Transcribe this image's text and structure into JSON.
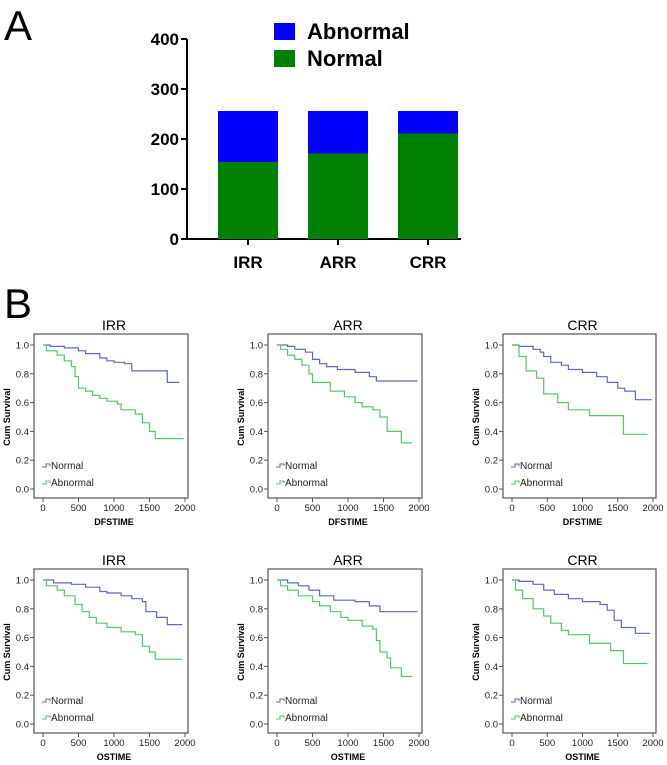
{
  "panel_labels": [
    "A",
    "B"
  ],
  "colors": {
    "bar_abnormal": "#0000ff",
    "bar_normal": "#008000",
    "km_normal": "#5b6cb3",
    "km_abnormal": "#5ac46a"
  },
  "chart_data": [
    {
      "type": "bar",
      "stacked": true,
      "categories": [
        "IRR",
        "ARR",
        "CRR"
      ],
      "series": [
        {
          "name": "Normal",
          "values": [
            154,
            171,
            211
          ]
        },
        {
          "name": "Abnormal",
          "values": [
            102,
            85,
            45
          ]
        }
      ],
      "ylim": [
        0,
        400
      ],
      "yticks": [
        "0",
        "100",
        "200",
        "300",
        "400"
      ],
      "legend_placement": "top"
    },
    {
      "type": "line",
      "step": true,
      "title": "IRR",
      "xlabel": "DFSTIME",
      "ylabel": "Cum Survival",
      "xlim": [
        0,
        2000
      ],
      "ylim": [
        0,
        1
      ],
      "xticks": [
        "0",
        "500",
        "1000",
        "1500",
        "2000"
      ],
      "yticks": [
        "0.0",
        "0.2",
        "0.4",
        "0.6",
        "0.8",
        "1.0"
      ],
      "legend_placement": "bottom-left",
      "series": [
        {
          "name": "Normal",
          "points": [
            [
              0,
              1
            ],
            [
              100,
              0.99
            ],
            [
              300,
              0.98
            ],
            [
              500,
              0.96
            ],
            [
              600,
              0.94
            ],
            [
              800,
              0.91
            ],
            [
              900,
              0.89
            ],
            [
              1000,
              0.88
            ],
            [
              1150,
              0.87
            ],
            [
              1250,
              0.82
            ],
            [
              1750,
              0.74
            ],
            [
              1920,
              0.74
            ]
          ]
        },
        {
          "name": "Abnormal",
          "points": [
            [
              0,
              1
            ],
            [
              50,
              0.96
            ],
            [
              200,
              0.93
            ],
            [
              300,
              0.89
            ],
            [
              400,
              0.85
            ],
            [
              450,
              0.78
            ],
            [
              500,
              0.7
            ],
            [
              600,
              0.68
            ],
            [
              700,
              0.65
            ],
            [
              800,
              0.63
            ],
            [
              900,
              0.61
            ],
            [
              1050,
              0.59
            ],
            [
              1100,
              0.55
            ],
            [
              1300,
              0.52
            ],
            [
              1400,
              0.46
            ],
            [
              1500,
              0.4
            ],
            [
              1580,
              0.35
            ],
            [
              1980,
              0.35
            ]
          ]
        }
      ]
    },
    {
      "type": "line",
      "step": true,
      "title": "ARR",
      "xlabel": "DFSTIME",
      "ylabel": "Cum Survival",
      "xlim": [
        0,
        2000
      ],
      "ylim": [
        0,
        1
      ],
      "xticks": [
        "0",
        "500",
        "1000",
        "1500",
        "2000"
      ],
      "yticks": [
        "0.0",
        "0.2",
        "0.4",
        "0.6",
        "0.8",
        "1.0"
      ],
      "legend_placement": "bottom-left",
      "series": [
        {
          "name": "Normal",
          "points": [
            [
              0,
              1
            ],
            [
              150,
              0.99
            ],
            [
              250,
              0.97
            ],
            [
              400,
              0.95
            ],
            [
              500,
              0.9
            ],
            [
              600,
              0.87
            ],
            [
              700,
              0.85
            ],
            [
              850,
              0.83
            ],
            [
              1100,
              0.81
            ],
            [
              1300,
              0.78
            ],
            [
              1400,
              0.75
            ],
            [
              1980,
              0.75
            ]
          ]
        },
        {
          "name": "Abnormal",
          "points": [
            [
              0,
              1
            ],
            [
              50,
              0.97
            ],
            [
              150,
              0.93
            ],
            [
              250,
              0.9
            ],
            [
              350,
              0.86
            ],
            [
              450,
              0.8
            ],
            [
              500,
              0.74
            ],
            [
              750,
              0.68
            ],
            [
              950,
              0.64
            ],
            [
              1100,
              0.6
            ],
            [
              1200,
              0.57
            ],
            [
              1350,
              0.55
            ],
            [
              1450,
              0.5
            ],
            [
              1550,
              0.4
            ],
            [
              1750,
              0.32
            ],
            [
              1900,
              0.32
            ]
          ]
        }
      ]
    },
    {
      "type": "line",
      "step": true,
      "title": "CRR",
      "xlabel": "DFSTIME",
      "ylabel": "Cum Survival",
      "xlim": [
        0,
        2000
      ],
      "ylim": [
        0,
        1
      ],
      "xticks": [
        "0",
        "500",
        "1000",
        "1500",
        "2000"
      ],
      "yticks": [
        "0.0",
        "0.2",
        "0.4",
        "0.6",
        "0.8",
        "1.0"
      ],
      "legend_placement": "bottom-left",
      "series": [
        {
          "name": "Normal",
          "points": [
            [
              0,
              1
            ],
            [
              100,
              0.99
            ],
            [
              300,
              0.97
            ],
            [
              400,
              0.95
            ],
            [
              450,
              0.92
            ],
            [
              550,
              0.88
            ],
            [
              700,
              0.86
            ],
            [
              800,
              0.83
            ],
            [
              1000,
              0.81
            ],
            [
              1200,
              0.78
            ],
            [
              1350,
              0.74
            ],
            [
              1500,
              0.7
            ],
            [
              1600,
              0.68
            ],
            [
              1750,
              0.62
            ],
            [
              1980,
              0.62
            ]
          ]
        },
        {
          "name": "Abnormal",
          "points": [
            [
              0,
              1
            ],
            [
              100,
              0.92
            ],
            [
              200,
              0.82
            ],
            [
              350,
              0.77
            ],
            [
              450,
              0.66
            ],
            [
              650,
              0.6
            ],
            [
              800,
              0.55
            ],
            [
              1100,
              0.51
            ],
            [
              1580,
              0.38
            ],
            [
              1920,
              0.38
            ]
          ]
        }
      ]
    },
    {
      "type": "line",
      "step": true,
      "title": "IRR",
      "xlabel": "OSTIME",
      "ylabel": "Cum Survival",
      "xlim": [
        0,
        2000
      ],
      "ylim": [
        0,
        1
      ],
      "xticks": [
        "0",
        "500",
        "1000",
        "1500",
        "2000"
      ],
      "yticks": [
        "0.0",
        "0.2",
        "0.4",
        "0.6",
        "0.8",
        "1.0"
      ],
      "legend_placement": "bottom-left",
      "series": [
        {
          "name": "Normal",
          "points": [
            [
              0,
              1
            ],
            [
              150,
              0.98
            ],
            [
              400,
              0.97
            ],
            [
              600,
              0.95
            ],
            [
              800,
              0.92
            ],
            [
              900,
              0.91
            ],
            [
              1100,
              0.89
            ],
            [
              1250,
              0.87
            ],
            [
              1400,
              0.85
            ],
            [
              1450,
              0.78
            ],
            [
              1600,
              0.74
            ],
            [
              1750,
              0.69
            ],
            [
              1960,
              0.69
            ]
          ]
        },
        {
          "name": "Abnormal",
          "points": [
            [
              0,
              1
            ],
            [
              50,
              0.96
            ],
            [
              200,
              0.93
            ],
            [
              300,
              0.89
            ],
            [
              450,
              0.83
            ],
            [
              550,
              0.78
            ],
            [
              650,
              0.74
            ],
            [
              750,
              0.7
            ],
            [
              900,
              0.67
            ],
            [
              1100,
              0.64
            ],
            [
              1300,
              0.62
            ],
            [
              1400,
              0.54
            ],
            [
              1500,
              0.5
            ],
            [
              1580,
              0.45
            ],
            [
              1960,
              0.45
            ]
          ]
        }
      ]
    },
    {
      "type": "line",
      "step": true,
      "title": "ARR",
      "xlabel": "OSTIME",
      "ylabel": "Cum Survival",
      "xlim": [
        0,
        2000
      ],
      "ylim": [
        0,
        1
      ],
      "xticks": [
        "0",
        "500",
        "1000",
        "1500",
        "2000"
      ],
      "yticks": [
        "0.0",
        "0.2",
        "0.4",
        "0.6",
        "0.8",
        "1.0"
      ],
      "legend_placement": "bottom-left",
      "series": [
        {
          "name": "Normal",
          "points": [
            [
              0,
              1
            ],
            [
              150,
              0.98
            ],
            [
              300,
              0.96
            ],
            [
              450,
              0.93
            ],
            [
              600,
              0.89
            ],
            [
              800,
              0.86
            ],
            [
              1100,
              0.85
            ],
            [
              1300,
              0.82
            ],
            [
              1450,
              0.78
            ],
            [
              1980,
              0.78
            ]
          ]
        },
        {
          "name": "Abnormal",
          "points": [
            [
              0,
              1
            ],
            [
              50,
              0.96
            ],
            [
              150,
              0.93
            ],
            [
              300,
              0.89
            ],
            [
              500,
              0.85
            ],
            [
              600,
              0.82
            ],
            [
              750,
              0.78
            ],
            [
              900,
              0.74
            ],
            [
              1000,
              0.72
            ],
            [
              1200,
              0.68
            ],
            [
              1350,
              0.66
            ],
            [
              1400,
              0.58
            ],
            [
              1450,
              0.5
            ],
            [
              1550,
              0.46
            ],
            [
              1600,
              0.39
            ],
            [
              1750,
              0.33
            ],
            [
              1900,
              0.33
            ]
          ]
        }
      ]
    },
    {
      "type": "line",
      "step": true,
      "title": "CRR",
      "xlabel": "OSTIME",
      "ylabel": "Cum Survival",
      "xlim": [
        0,
        2000
      ],
      "ylim": [
        0,
        1
      ],
      "xticks": [
        "0",
        "500",
        "1000",
        "1500",
        "2000"
      ],
      "yticks": [
        "0.0",
        "0.2",
        "0.4",
        "0.6",
        "0.8",
        "1.0"
      ],
      "legend_placement": "bottom-left",
      "series": [
        {
          "name": "Normal",
          "points": [
            [
              0,
              1
            ],
            [
              100,
              0.99
            ],
            [
              300,
              0.97
            ],
            [
              450,
              0.93
            ],
            [
              600,
              0.9
            ],
            [
              800,
              0.87
            ],
            [
              1000,
              0.85
            ],
            [
              1250,
              0.83
            ],
            [
              1350,
              0.79
            ],
            [
              1450,
              0.72
            ],
            [
              1550,
              0.67
            ],
            [
              1750,
              0.63
            ],
            [
              1960,
              0.63
            ]
          ]
        },
        {
          "name": "Abnormal",
          "points": [
            [
              0,
              1
            ],
            [
              50,
              0.93
            ],
            [
              150,
              0.87
            ],
            [
              300,
              0.8
            ],
            [
              450,
              0.75
            ],
            [
              550,
              0.7
            ],
            [
              700,
              0.65
            ],
            [
              800,
              0.62
            ],
            [
              1100,
              0.56
            ],
            [
              1400,
              0.51
            ],
            [
              1580,
              0.42
            ],
            [
              1920,
              0.42
            ]
          ]
        }
      ]
    }
  ]
}
